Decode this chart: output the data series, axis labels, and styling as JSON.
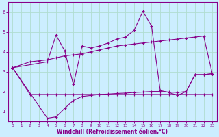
{
  "xlabel": "Windchill (Refroidissement éolien,°C)",
  "bg_color": "#cceeff",
  "grid_color": "#aaddcc",
  "line_color": "#880088",
  "xlim": [
    -0.5,
    23.5
  ],
  "ylim": [
    0.5,
    6.5
  ],
  "xticks": [
    0,
    1,
    2,
    3,
    4,
    5,
    6,
    7,
    8,
    9,
    10,
    11,
    12,
    13,
    14,
    15,
    16,
    17,
    18,
    19,
    20,
    21,
    22,
    23
  ],
  "yticks": [
    1,
    2,
    3,
    4,
    5,
    6
  ],
  "line1_x": [
    0,
    2,
    3,
    4,
    5,
    6,
    7,
    8,
    9,
    10,
    11,
    12,
    13,
    14,
    15,
    16,
    17,
    18,
    19,
    20,
    21,
    22,
    23
  ],
  "line1_y": [
    3.2,
    1.85,
    1.85,
    1.85,
    1.85,
    1.85,
    1.85,
    1.85,
    1.85,
    1.85,
    1.85,
    1.85,
    1.85,
    1.85,
    1.85,
    1.85,
    1.85,
    1.85,
    1.85,
    1.85,
    1.85,
    1.85,
    1.85
  ],
  "line2_x": [
    0,
    2,
    3,
    4,
    5,
    6,
    7,
    8,
    9,
    10,
    11,
    12,
    13,
    14,
    15,
    16,
    17,
    18,
    19,
    20,
    21,
    22,
    23
  ],
  "line2_y": [
    3.2,
    3.5,
    3.55,
    3.6,
    3.7,
    3.8,
    3.85,
    3.9,
    4.0,
    4.1,
    4.2,
    4.3,
    4.35,
    4.4,
    4.45,
    4.5,
    4.55,
    4.6,
    4.65,
    4.7,
    4.75,
    4.8,
    2.9
  ],
  "line3_x": [
    0,
    4,
    5,
    6,
    7,
    8,
    9,
    10,
    11,
    12,
    13,
    14,
    15,
    16,
    17,
    18,
    19,
    20,
    21,
    22,
    23
  ],
  "line3_y": [
    3.2,
    3.5,
    4.85,
    4.05,
    2.35,
    4.3,
    4.2,
    4.3,
    4.45,
    4.65,
    4.75,
    5.1,
    6.05,
    5.3,
    2.05,
    1.95,
    1.8,
    2.0,
    2.85,
    2.85,
    2.9
  ],
  "line4_x": [
    0,
    4,
    5,
    6,
    7,
    8,
    9,
    10,
    11,
    12,
    13,
    14,
    15,
    16,
    17,
    18,
    19,
    20,
    21,
    22,
    23
  ],
  "line4_y": [
    3.2,
    0.65,
    0.72,
    1.15,
    1.55,
    1.75,
    1.8,
    1.85,
    1.87,
    1.9,
    1.92,
    1.95,
    1.97,
    2.0,
    2.0,
    1.97,
    1.95,
    2.0,
    2.85,
    2.85,
    2.9
  ]
}
